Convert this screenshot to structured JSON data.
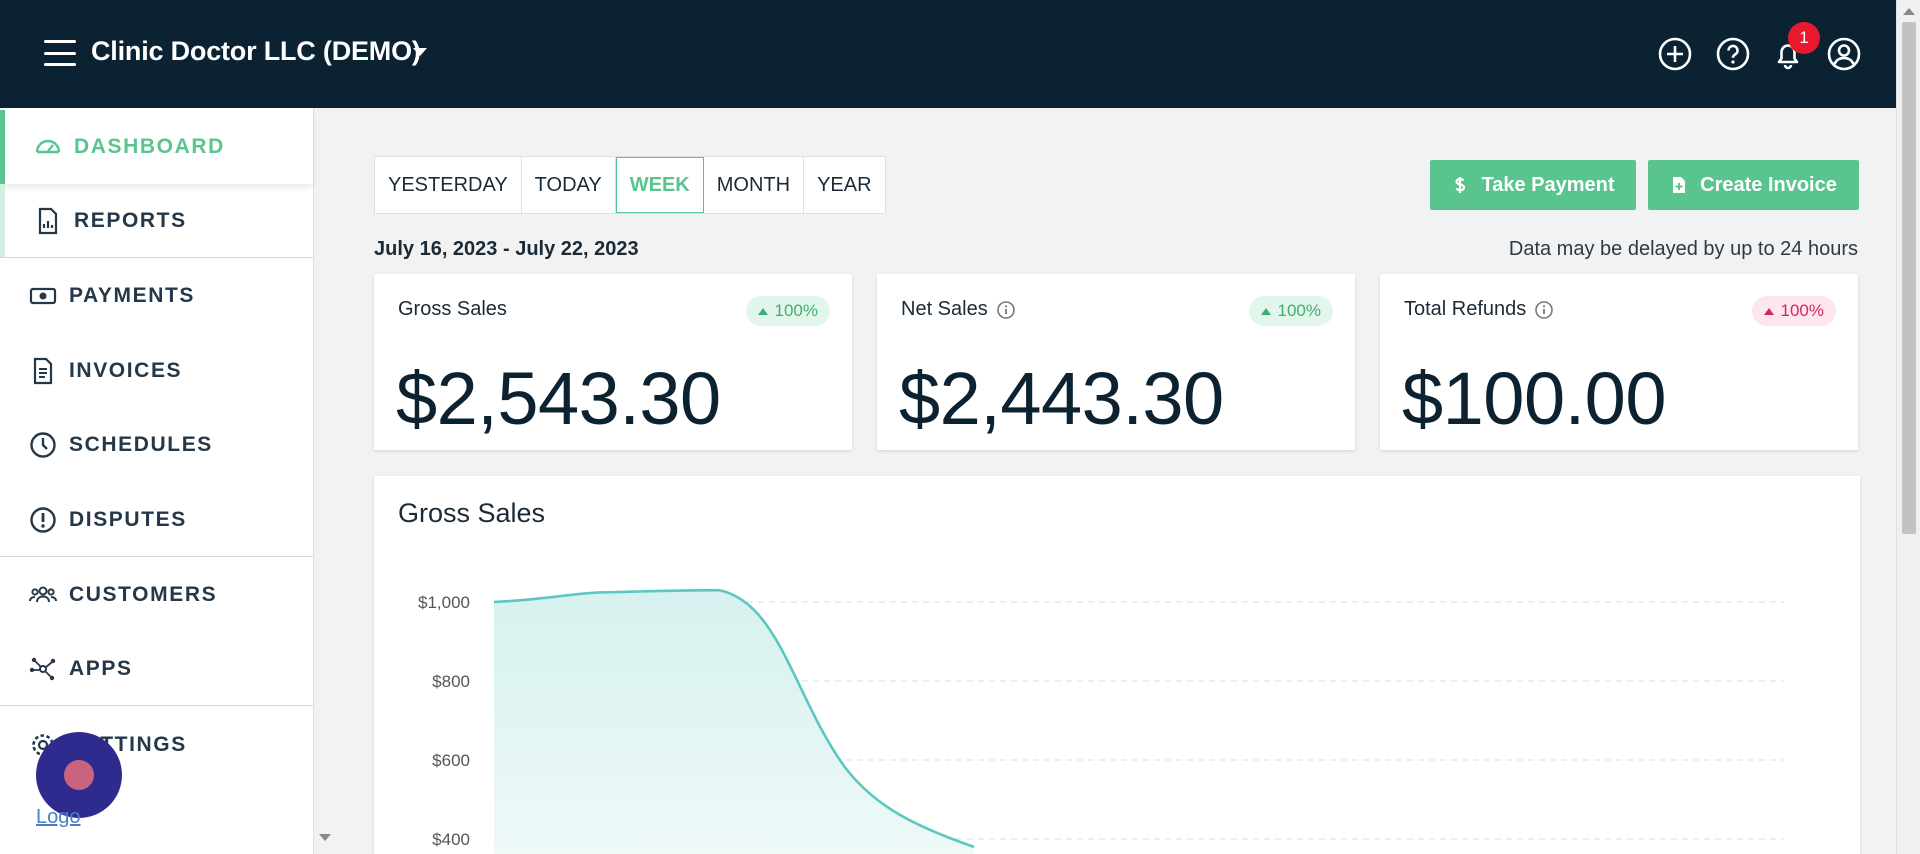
{
  "header": {
    "org_title": "Clinic Doctor LLC (DEMO)",
    "notification_count": "1",
    "icons": [
      "add-circle-icon",
      "help-circle-icon",
      "bell-icon",
      "account-circle-icon"
    ]
  },
  "sidebar": {
    "items": [
      {
        "label": "DASHBOARD",
        "icon": "speedometer-icon",
        "active": true
      },
      {
        "label": "REPORTS",
        "icon": "report-icon"
      },
      {
        "label": "PAYMENTS",
        "icon": "cash-icon"
      },
      {
        "label": "INVOICES",
        "icon": "invoice-icon"
      },
      {
        "label": "SCHEDULES",
        "icon": "clock-icon"
      },
      {
        "label": "DISPUTES",
        "icon": "alert-circle-icon"
      },
      {
        "label": "CUSTOMERS",
        "icon": "people-icon"
      },
      {
        "label": "APPS",
        "icon": "apps-hub-icon"
      },
      {
        "label": "SETTINGS",
        "icon": "gear-icon"
      }
    ],
    "logo_alt": "Logo"
  },
  "range_tabs": [
    {
      "label": "YESTERDAY"
    },
    {
      "label": "TODAY"
    },
    {
      "label": "WEEK",
      "active": true
    },
    {
      "label": "MONTH"
    },
    {
      "label": "YEAR"
    }
  ],
  "actions": {
    "take_payment": "Take Payment",
    "create_invoice": "Create Invoice"
  },
  "date_range": "July 16, 2023 - July 22, 2023",
  "delay_note": "Data may be delayed by up to 24 hours",
  "stats": [
    {
      "label": "Gross Sales",
      "change": "100%",
      "trend": "up",
      "value": "$2,543.30",
      "info": false
    },
    {
      "label": "Net Sales",
      "change": "100%",
      "trend": "up",
      "value": "$2,443.30",
      "info": true
    },
    {
      "label": "Total Refunds",
      "change": "100%",
      "trend": "negative",
      "value": "$100.00",
      "info": true
    }
  ],
  "colors": {
    "brand_green": "#5ac48f",
    "topbar": "#0b2233",
    "negative": "#d3285f",
    "chart_line": "#5cc7c0"
  },
  "chart_data": {
    "type": "area",
    "title": "Gross Sales",
    "xlabel": "",
    "ylabel": "",
    "y_ticks": [
      "$1,000",
      "$800",
      "$600",
      "$400"
    ],
    "y_visible_range": [
      380,
      1000
    ],
    "grid": true,
    "series": [
      {
        "x": [
          0,
          1,
          2,
          3
        ],
        "values": [
          1000,
          1025,
          1030,
          380
        ]
      }
    ]
  }
}
